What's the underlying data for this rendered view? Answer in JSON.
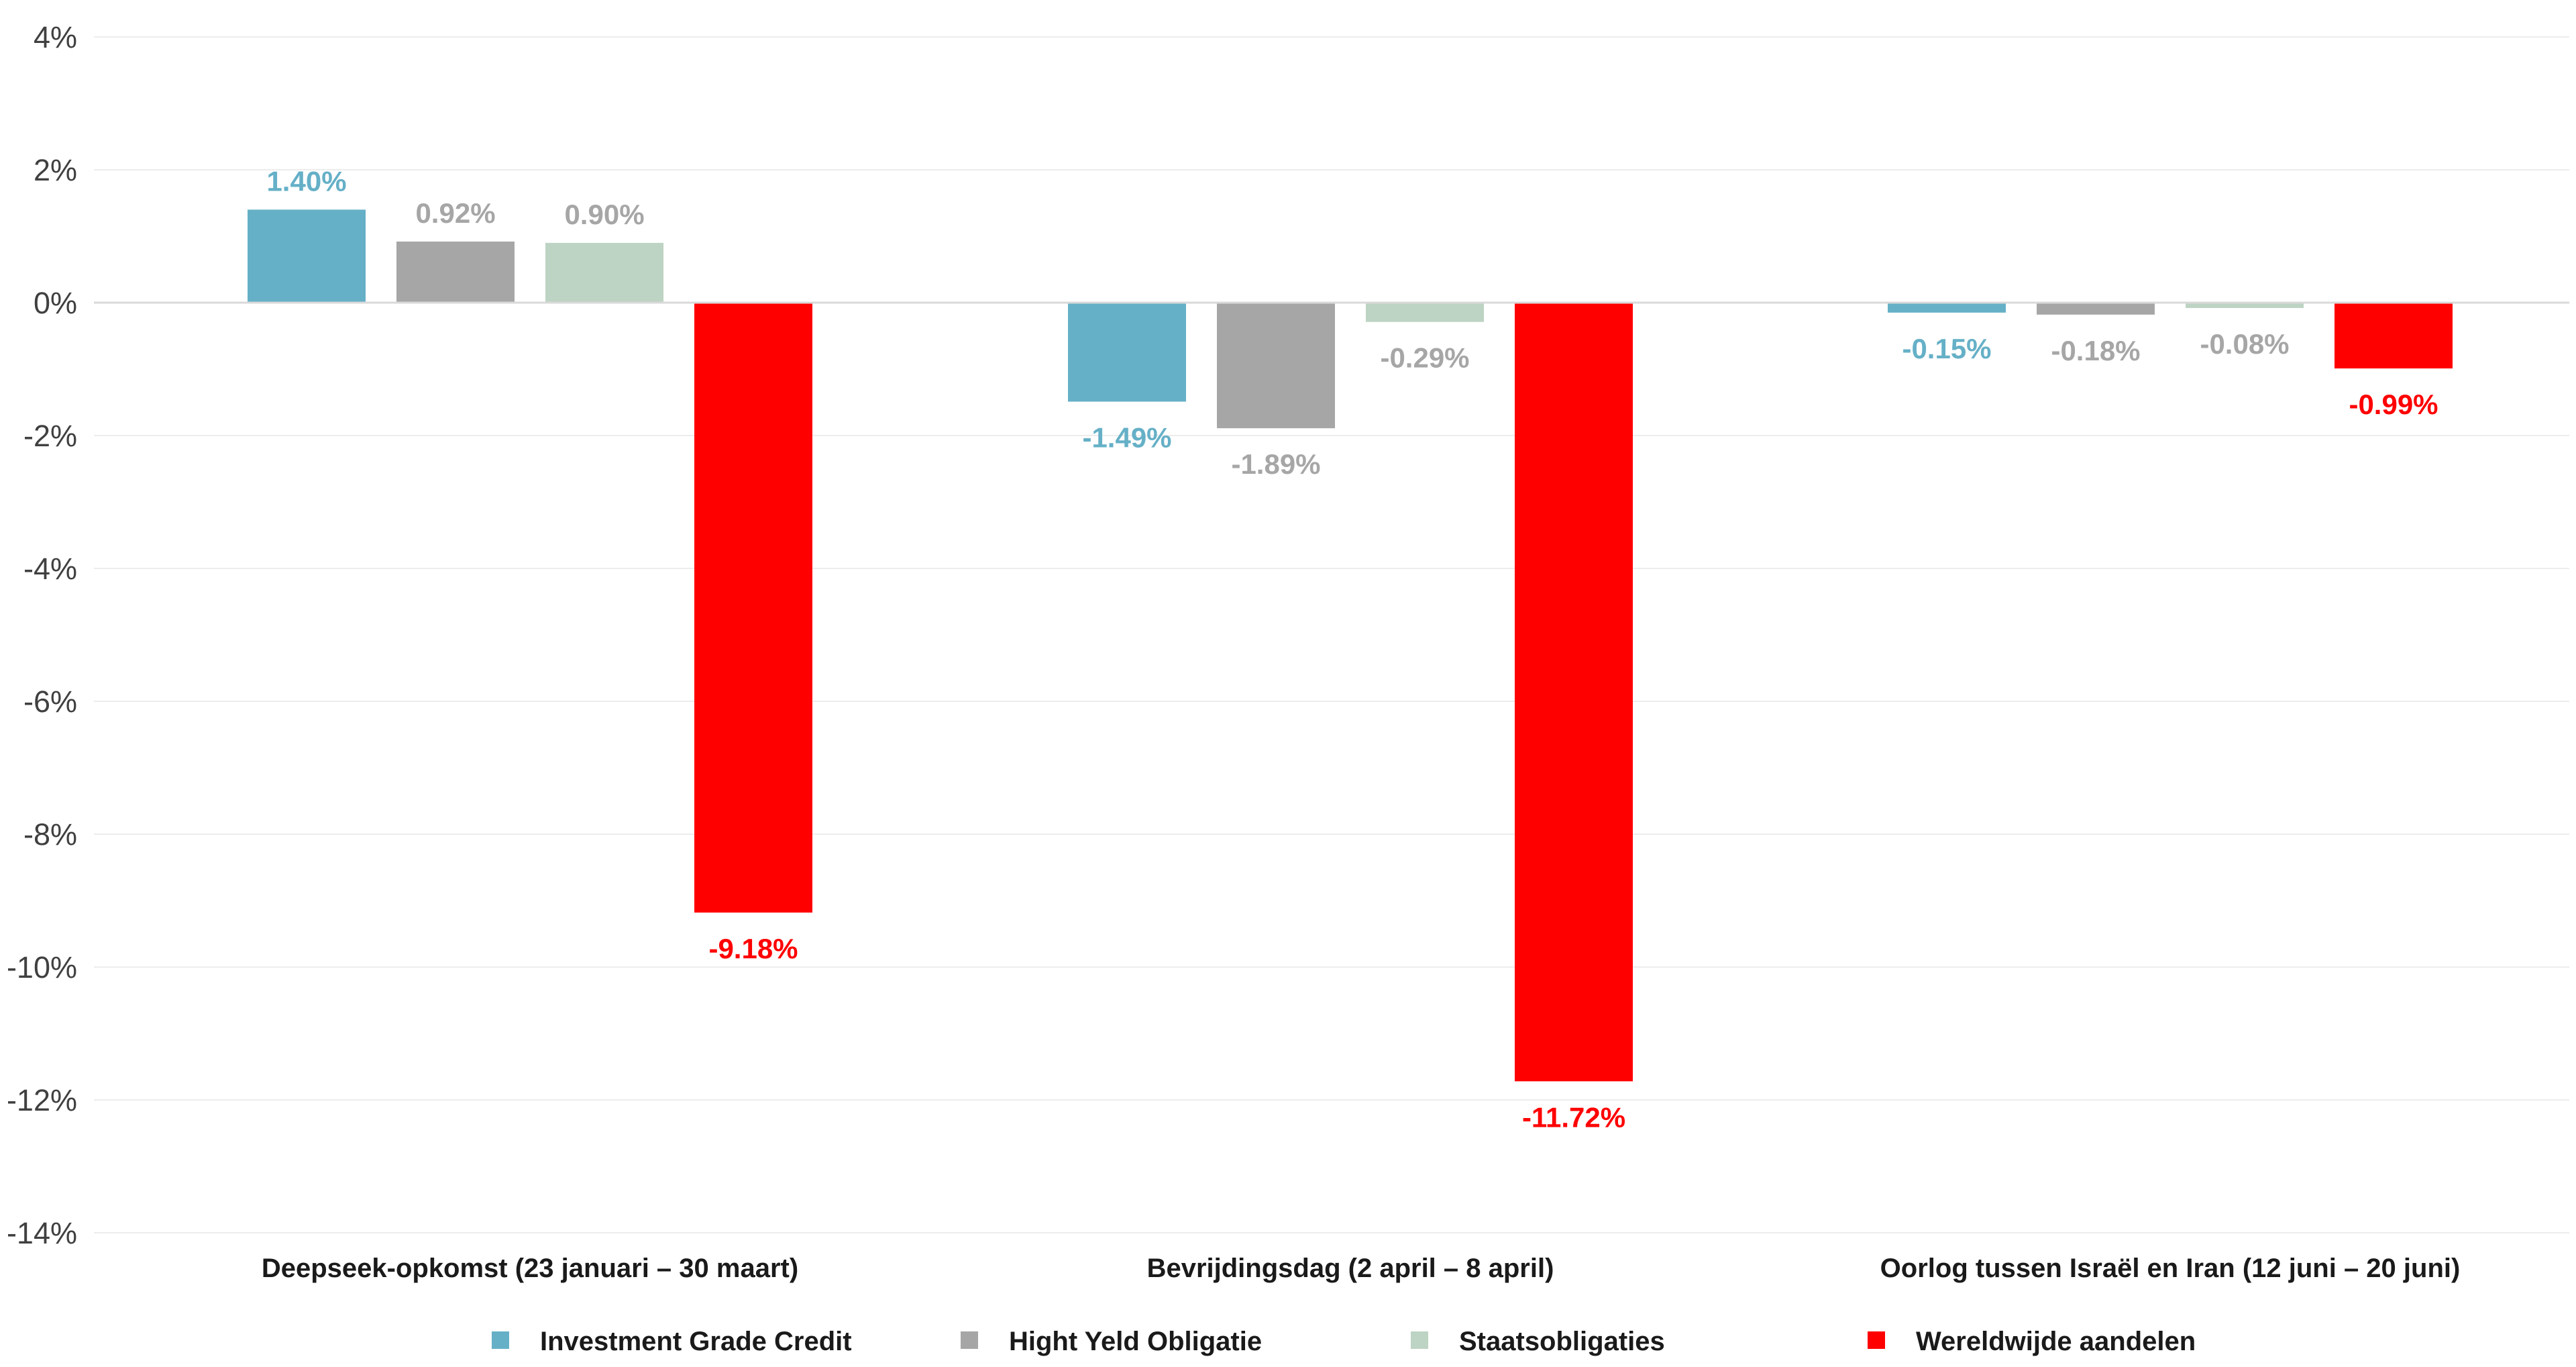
{
  "chart_data": {
    "type": "bar",
    "title": "",
    "xlabel": "",
    "ylabel": "",
    "ylim": [
      -14,
      4
    ],
    "y_ticks": [
      4,
      2,
      0,
      -2,
      -4,
      -6,
      -8,
      -10,
      -12,
      -14
    ],
    "y_tick_labels": [
      "4%",
      "2%",
      "0%",
      "-2%",
      "-4%",
      "-6%",
      "-8%",
      "-10%",
      "-12%",
      "-14%"
    ],
    "grid": true,
    "legend_position": "bottom",
    "categories": [
      "Deepseek-opkomst (23 januari – 30 maart)",
      "Bevrijdingsdag (2 april – 8 april)",
      "Oorlog tussen Israël en Iran (12 juni – 20 juni)"
    ],
    "series": [
      {
        "name": "Investment Grade Credit",
        "color": "#65B0C7",
        "label_color": "#65B0C7",
        "values": [
          1.4,
          -1.49,
          -0.15
        ],
        "labels": [
          "1.40%",
          "-1.49%",
          "-0.15%"
        ]
      },
      {
        "name": "Hight Yeld Obligatie",
        "color": "#A6A6A6",
        "label_color": "#A6A6A6",
        "values": [
          0.92,
          -1.89,
          -0.18
        ],
        "labels": [
          "0.92%",
          "-1.89%",
          "-0.18%"
        ]
      },
      {
        "name": "Staatsobligaties",
        "color": "#BDD3C3",
        "label_color": "#A6A6A6",
        "values": [
          0.9,
          -0.29,
          -0.08
        ],
        "labels": [
          "0.90%",
          "-0.29%",
          "-0.08%"
        ]
      },
      {
        "name": "Wereldwijde aandelen",
        "color": "#FF0000",
        "label_color": "#FF0000",
        "values": [
          -9.18,
          -11.72,
          -0.99
        ],
        "labels": [
          "-9.18%",
          "-11.72%",
          "-0.99%"
        ]
      }
    ]
  }
}
